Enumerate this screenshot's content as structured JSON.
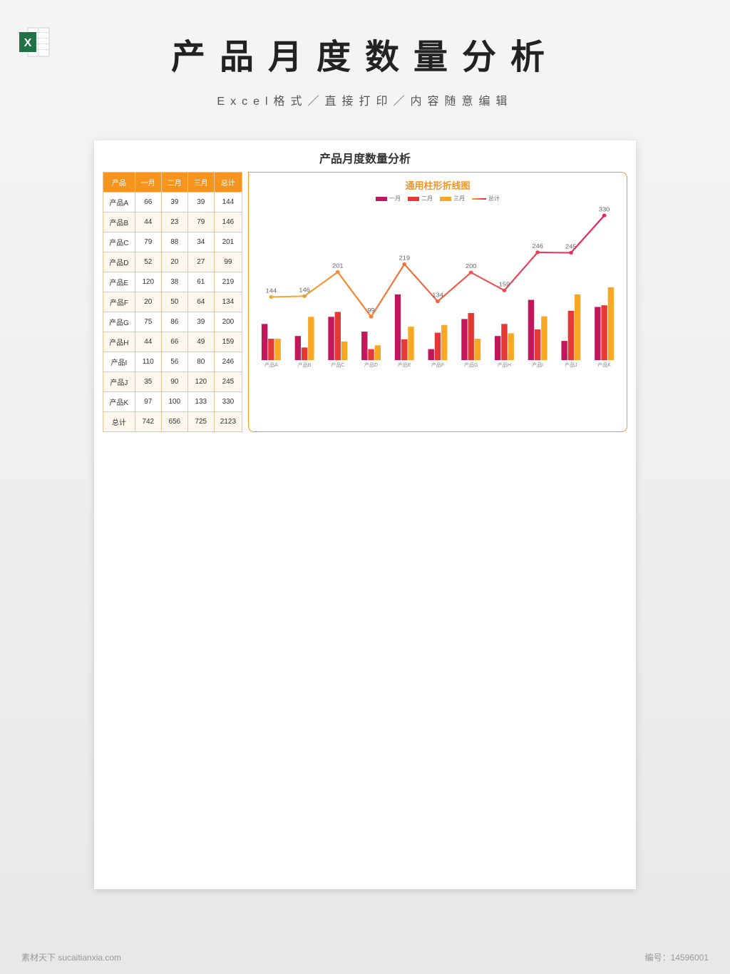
{
  "header": {
    "main_title": "产品月度数量分析",
    "subtitle": "Excel格式／直接打印／内容随意编辑",
    "excel_icon_colors": {
      "bg": "#217346",
      "letter": "#ffffff",
      "sheet": "#ffffff"
    }
  },
  "sheet": {
    "title": "产品月度数量分析"
  },
  "table": {
    "header_bg": "#f7941d",
    "header_fg": "#ffffff",
    "border_color": "#e5c79a",
    "alt_row_bg": "#fef7ed",
    "columns": [
      "产品",
      "一月",
      "二月",
      "三月",
      "总计"
    ],
    "rows": [
      [
        "产品A",
        66,
        39,
        39,
        144
      ],
      [
        "产品B",
        44,
        23,
        79,
        146
      ],
      [
        "产品C",
        79,
        88,
        34,
        201
      ],
      [
        "产品D",
        52,
        20,
        27,
        99
      ],
      [
        "产品E",
        120,
        38,
        61,
        219
      ],
      [
        "产品F",
        20,
        50,
        64,
        134
      ],
      [
        "产品G",
        75,
        86,
        39,
        200
      ],
      [
        "产品H",
        44,
        66,
        49,
        159
      ],
      [
        "产品I",
        110,
        56,
        80,
        246
      ],
      [
        "产品J",
        35,
        90,
        120,
        245
      ],
      [
        "产品K",
        97,
        100,
        133,
        330
      ]
    ],
    "total_row": [
      "总计",
      742,
      656,
      725,
      2123
    ]
  },
  "chart": {
    "title": "通用柱形折线图",
    "title_color": "#f7941d",
    "border_color": "#f7941d",
    "legend": [
      {
        "label": "一月",
        "color": "#c2185b",
        "type": "bar"
      },
      {
        "label": "二月",
        "color": "#e53935",
        "type": "bar"
      },
      {
        "label": "三月",
        "color": "#f9a825",
        "type": "bar"
      },
      {
        "label": "总计",
        "color_start": "#f9a825",
        "color_end": "#e91e63",
        "type": "line"
      }
    ],
    "categories": [
      "产品A",
      "产品B",
      "产品C",
      "产品D",
      "产品E",
      "产品F",
      "产品G",
      "产品H",
      "产品I",
      "产品J",
      "产品K"
    ],
    "series_bar": {
      "一月": [
        66,
        44,
        79,
        52,
        120,
        20,
        75,
        44,
        110,
        35,
        97
      ],
      "二月": [
        39,
        23,
        88,
        20,
        38,
        50,
        86,
        66,
        56,
        90,
        100
      ],
      "三月": [
        39,
        79,
        34,
        27,
        61,
        64,
        39,
        49,
        80,
        120,
        133
      ]
    },
    "series_line": {
      "总计": [
        144,
        146,
        201,
        99,
        219,
        134,
        200,
        159,
        246,
        245,
        330
      ]
    },
    "bar_y_max": 140,
    "line_y_max": 350,
    "bar_colors": [
      "#c2185b",
      "#e53935",
      "#f9a825"
    ],
    "value_label_fontsize": 8,
    "value_label_color": "#666666",
    "axis_label_fontsize": 7,
    "axis_label_color": "#888888",
    "background_color": "#ffffff"
  },
  "footer": {
    "left": "素材天下  sucaitianxia.com",
    "right_label": "编号：",
    "right_value": "14596001"
  }
}
